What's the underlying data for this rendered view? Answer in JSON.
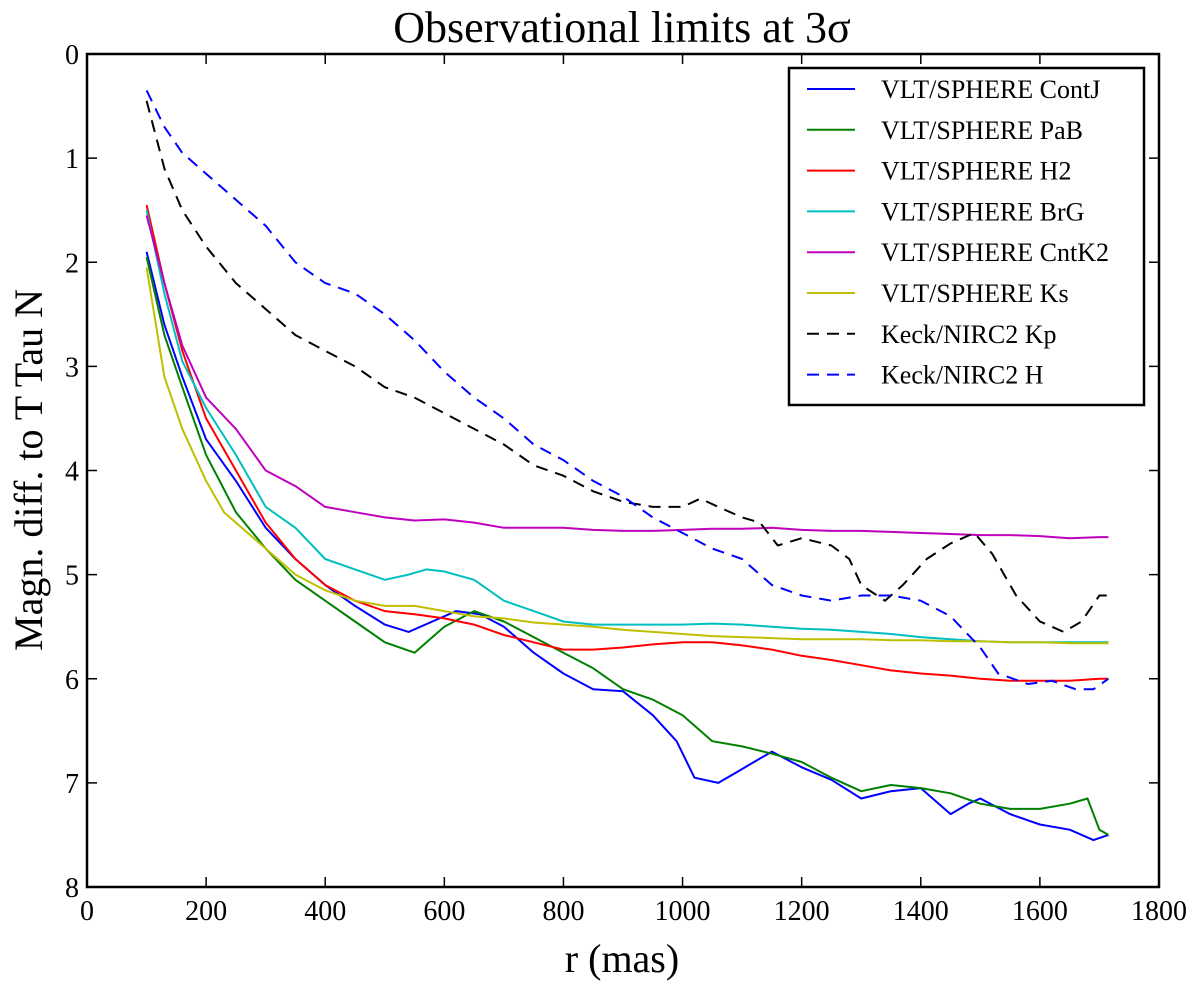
{
  "chart_data": {
    "type": "line",
    "title": "Observational limits at 3σ",
    "xlabel": "r (mas)",
    "ylabel": "Magn. diff. to T Tau N",
    "xlim": [
      0,
      1800
    ],
    "ylim": [
      0,
      8
    ],
    "y_inverted": true,
    "grid": false,
    "legend_position": "top-right",
    "x_ticks": [
      0,
      200,
      400,
      600,
      800,
      1000,
      1200,
      1400,
      1600,
      1800
    ],
    "y_ticks": [
      0,
      1,
      2,
      3,
      4,
      5,
      6,
      7,
      8
    ],
    "series": [
      {
        "name": "VLT/SPHERE ContJ",
        "color": "#0000ff",
        "dash": "solid",
        "points": [
          [
            100,
            1.9
          ],
          [
            130,
            2.6
          ],
          [
            160,
            3.1
          ],
          [
            200,
            3.7
          ],
          [
            250,
            4.1
          ],
          [
            300,
            4.55
          ],
          [
            350,
            4.85
          ],
          [
            400,
            5.1
          ],
          [
            450,
            5.3
          ],
          [
            500,
            5.48
          ],
          [
            540,
            5.55
          ],
          [
            580,
            5.45
          ],
          [
            620,
            5.35
          ],
          [
            660,
            5.38
          ],
          [
            700,
            5.5
          ],
          [
            750,
            5.75
          ],
          [
            800,
            5.95
          ],
          [
            850,
            6.1
          ],
          [
            900,
            6.12
          ],
          [
            950,
            6.35
          ],
          [
            990,
            6.6
          ],
          [
            1020,
            6.95
          ],
          [
            1060,
            7.0
          ],
          [
            1090,
            6.9
          ],
          [
            1120,
            6.8
          ],
          [
            1150,
            6.7
          ],
          [
            1200,
            6.85
          ],
          [
            1250,
            6.97
          ],
          [
            1300,
            7.15
          ],
          [
            1350,
            7.08
          ],
          [
            1400,
            7.05
          ],
          [
            1450,
            7.3
          ],
          [
            1480,
            7.2
          ],
          [
            1500,
            7.15
          ],
          [
            1550,
            7.3
          ],
          [
            1600,
            7.4
          ],
          [
            1650,
            7.45
          ],
          [
            1690,
            7.55
          ],
          [
            1715,
            7.5
          ]
        ]
      },
      {
        "name": "VLT/SPHERE PaB",
        "color": "#008000",
        "dash": "solid",
        "points": [
          [
            100,
            1.95
          ],
          [
            130,
            2.7
          ],
          [
            160,
            3.2
          ],
          [
            200,
            3.85
          ],
          [
            250,
            4.4
          ],
          [
            300,
            4.75
          ],
          [
            350,
            5.05
          ],
          [
            400,
            5.25
          ],
          [
            450,
            5.45
          ],
          [
            500,
            5.65
          ],
          [
            550,
            5.75
          ],
          [
            600,
            5.5
          ],
          [
            650,
            5.35
          ],
          [
            700,
            5.45
          ],
          [
            750,
            5.6
          ],
          [
            800,
            5.75
          ],
          [
            850,
            5.9
          ],
          [
            900,
            6.1
          ],
          [
            950,
            6.2
          ],
          [
            1000,
            6.35
          ],
          [
            1050,
            6.6
          ],
          [
            1100,
            6.65
          ],
          [
            1150,
            6.72
          ],
          [
            1200,
            6.8
          ],
          [
            1250,
            6.95
          ],
          [
            1300,
            7.08
          ],
          [
            1350,
            7.02
          ],
          [
            1400,
            7.05
          ],
          [
            1450,
            7.1
          ],
          [
            1500,
            7.2
          ],
          [
            1550,
            7.25
          ],
          [
            1600,
            7.25
          ],
          [
            1650,
            7.2
          ],
          [
            1680,
            7.15
          ],
          [
            1700,
            7.45
          ],
          [
            1715,
            7.5
          ]
        ]
      },
      {
        "name": "VLT/SPHERE H2",
        "color": "#ff0000",
        "dash": "solid",
        "points": [
          [
            100,
            1.45
          ],
          [
            130,
            2.2
          ],
          [
            160,
            2.85
          ],
          [
            200,
            3.5
          ],
          [
            250,
            4.0
          ],
          [
            300,
            4.5
          ],
          [
            350,
            4.85
          ],
          [
            400,
            5.1
          ],
          [
            450,
            5.25
          ],
          [
            500,
            5.35
          ],
          [
            550,
            5.38
          ],
          [
            600,
            5.42
          ],
          [
            650,
            5.48
          ],
          [
            700,
            5.58
          ],
          [
            750,
            5.65
          ],
          [
            800,
            5.72
          ],
          [
            850,
            5.72
          ],
          [
            900,
            5.7
          ],
          [
            950,
            5.67
          ],
          [
            1000,
            5.65
          ],
          [
            1050,
            5.65
          ],
          [
            1100,
            5.68
          ],
          [
            1150,
            5.72
          ],
          [
            1200,
            5.78
          ],
          [
            1250,
            5.82
          ],
          [
            1300,
            5.87
          ],
          [
            1350,
            5.92
          ],
          [
            1400,
            5.95
          ],
          [
            1450,
            5.97
          ],
          [
            1500,
            6.0
          ],
          [
            1550,
            6.02
          ],
          [
            1600,
            6.02
          ],
          [
            1650,
            6.02
          ],
          [
            1700,
            6.0
          ],
          [
            1715,
            6.0
          ]
        ]
      },
      {
        "name": "VLT/SPHERE BrG",
        "color": "#00bfbf",
        "dash": "solid",
        "points": [
          [
            100,
            1.5
          ],
          [
            130,
            2.3
          ],
          [
            160,
            2.95
          ],
          [
            200,
            3.4
          ],
          [
            250,
            3.85
          ],
          [
            300,
            4.35
          ],
          [
            350,
            4.55
          ],
          [
            400,
            4.85
          ],
          [
            450,
            4.95
          ],
          [
            500,
            5.05
          ],
          [
            540,
            5.0
          ],
          [
            570,
            4.95
          ],
          [
            600,
            4.97
          ],
          [
            650,
            5.05
          ],
          [
            700,
            5.25
          ],
          [
            750,
            5.35
          ],
          [
            800,
            5.45
          ],
          [
            850,
            5.48
          ],
          [
            900,
            5.48
          ],
          [
            950,
            5.48
          ],
          [
            1000,
            5.48
          ],
          [
            1050,
            5.47
          ],
          [
            1100,
            5.48
          ],
          [
            1150,
            5.5
          ],
          [
            1200,
            5.52
          ],
          [
            1250,
            5.53
          ],
          [
            1300,
            5.55
          ],
          [
            1350,
            5.57
          ],
          [
            1400,
            5.6
          ],
          [
            1450,
            5.62
          ],
          [
            1500,
            5.64
          ],
          [
            1550,
            5.65
          ],
          [
            1600,
            5.65
          ],
          [
            1650,
            5.65
          ],
          [
            1700,
            5.65
          ],
          [
            1715,
            5.65
          ]
        ]
      },
      {
        "name": "VLT/SPHERE CntK2",
        "color": "#bf00bf",
        "dash": "solid",
        "points": [
          [
            100,
            1.55
          ],
          [
            130,
            2.2
          ],
          [
            160,
            2.8
          ],
          [
            200,
            3.3
          ],
          [
            250,
            3.6
          ],
          [
            300,
            4.0
          ],
          [
            350,
            4.15
          ],
          [
            400,
            4.35
          ],
          [
            450,
            4.4
          ],
          [
            500,
            4.45
          ],
          [
            550,
            4.48
          ],
          [
            600,
            4.47
          ],
          [
            650,
            4.5
          ],
          [
            700,
            4.55
          ],
          [
            750,
            4.55
          ],
          [
            800,
            4.55
          ],
          [
            850,
            4.57
          ],
          [
            900,
            4.58
          ],
          [
            950,
            4.58
          ],
          [
            1000,
            4.57
          ],
          [
            1050,
            4.56
          ],
          [
            1100,
            4.56
          ],
          [
            1150,
            4.55
          ],
          [
            1200,
            4.57
          ],
          [
            1250,
            4.58
          ],
          [
            1300,
            4.58
          ],
          [
            1350,
            4.59
          ],
          [
            1400,
            4.6
          ],
          [
            1450,
            4.61
          ],
          [
            1500,
            4.62
          ],
          [
            1550,
            4.62
          ],
          [
            1600,
            4.63
          ],
          [
            1650,
            4.65
          ],
          [
            1700,
            4.64
          ],
          [
            1715,
            4.64
          ]
        ]
      },
      {
        "name": "VLT/SPHERE Ks",
        "color": "#bfbf00",
        "dash": "solid",
        "points": [
          [
            100,
            2.05
          ],
          [
            130,
            3.1
          ],
          [
            160,
            3.6
          ],
          [
            200,
            4.1
          ],
          [
            230,
            4.4
          ],
          [
            270,
            4.6
          ],
          [
            300,
            4.75
          ],
          [
            350,
            5.0
          ],
          [
            400,
            5.15
          ],
          [
            450,
            5.25
          ],
          [
            500,
            5.3
          ],
          [
            550,
            5.3
          ],
          [
            600,
            5.35
          ],
          [
            650,
            5.4
          ],
          [
            700,
            5.42
          ],
          [
            750,
            5.46
          ],
          [
            800,
            5.48
          ],
          [
            850,
            5.5
          ],
          [
            900,
            5.53
          ],
          [
            950,
            5.55
          ],
          [
            1000,
            5.57
          ],
          [
            1050,
            5.59
          ],
          [
            1100,
            5.6
          ],
          [
            1150,
            5.61
          ],
          [
            1200,
            5.62
          ],
          [
            1250,
            5.62
          ],
          [
            1300,
            5.62
          ],
          [
            1350,
            5.63
          ],
          [
            1400,
            5.63
          ],
          [
            1450,
            5.64
          ],
          [
            1500,
            5.64
          ],
          [
            1550,
            5.65
          ],
          [
            1600,
            5.65
          ],
          [
            1650,
            5.66
          ],
          [
            1700,
            5.66
          ],
          [
            1715,
            5.66
          ]
        ]
      },
      {
        "name": "Keck/NIRC2 Kp",
        "color": "#000000",
        "dash": "dashed",
        "points": [
          [
            100,
            0.45
          ],
          [
            130,
            1.1
          ],
          [
            160,
            1.5
          ],
          [
            200,
            1.85
          ],
          [
            250,
            2.2
          ],
          [
            300,
            2.45
          ],
          [
            350,
            2.7
          ],
          [
            400,
            2.85
          ],
          [
            450,
            3.0
          ],
          [
            500,
            3.2
          ],
          [
            550,
            3.3
          ],
          [
            600,
            3.45
          ],
          [
            650,
            3.6
          ],
          [
            700,
            3.75
          ],
          [
            750,
            3.95
          ],
          [
            800,
            4.05
          ],
          [
            850,
            4.2
          ],
          [
            900,
            4.3
          ],
          [
            950,
            4.35
          ],
          [
            1000,
            4.35
          ],
          [
            1030,
            4.27
          ],
          [
            1060,
            4.35
          ],
          [
            1100,
            4.45
          ],
          [
            1130,
            4.5
          ],
          [
            1160,
            4.72
          ],
          [
            1200,
            4.65
          ],
          [
            1250,
            4.72
          ],
          [
            1280,
            4.85
          ],
          [
            1300,
            5.1
          ],
          [
            1340,
            5.25
          ],
          [
            1370,
            5.1
          ],
          [
            1410,
            4.85
          ],
          [
            1450,
            4.7
          ],
          [
            1490,
            4.6
          ],
          [
            1520,
            4.8
          ],
          [
            1560,
            5.2
          ],
          [
            1600,
            5.45
          ],
          [
            1640,
            5.55
          ],
          [
            1670,
            5.45
          ],
          [
            1700,
            5.2
          ],
          [
            1715,
            5.2
          ]
        ]
      },
      {
        "name": "Keck/NIRC2 H",
        "color": "#0000ff",
        "dash": "dashed",
        "points": [
          [
            100,
            0.35
          ],
          [
            130,
            0.7
          ],
          [
            160,
            0.95
          ],
          [
            200,
            1.15
          ],
          [
            250,
            1.4
          ],
          [
            300,
            1.65
          ],
          [
            350,
            2.0
          ],
          [
            400,
            2.2
          ],
          [
            450,
            2.3
          ],
          [
            500,
            2.5
          ],
          [
            550,
            2.75
          ],
          [
            600,
            3.05
          ],
          [
            650,
            3.3
          ],
          [
            700,
            3.5
          ],
          [
            750,
            3.75
          ],
          [
            800,
            3.9
          ],
          [
            850,
            4.1
          ],
          [
            900,
            4.25
          ],
          [
            950,
            4.45
          ],
          [
            1000,
            4.6
          ],
          [
            1050,
            4.75
          ],
          [
            1100,
            4.85
          ],
          [
            1150,
            5.1
          ],
          [
            1200,
            5.2
          ],
          [
            1250,
            5.25
          ],
          [
            1300,
            5.2
          ],
          [
            1350,
            5.2
          ],
          [
            1400,
            5.25
          ],
          [
            1450,
            5.4
          ],
          [
            1500,
            5.7
          ],
          [
            1530,
            5.95
          ],
          [
            1580,
            6.05
          ],
          [
            1620,
            6.02
          ],
          [
            1660,
            6.1
          ],
          [
            1690,
            6.1
          ],
          [
            1715,
            6.0
          ]
        ]
      }
    ]
  }
}
